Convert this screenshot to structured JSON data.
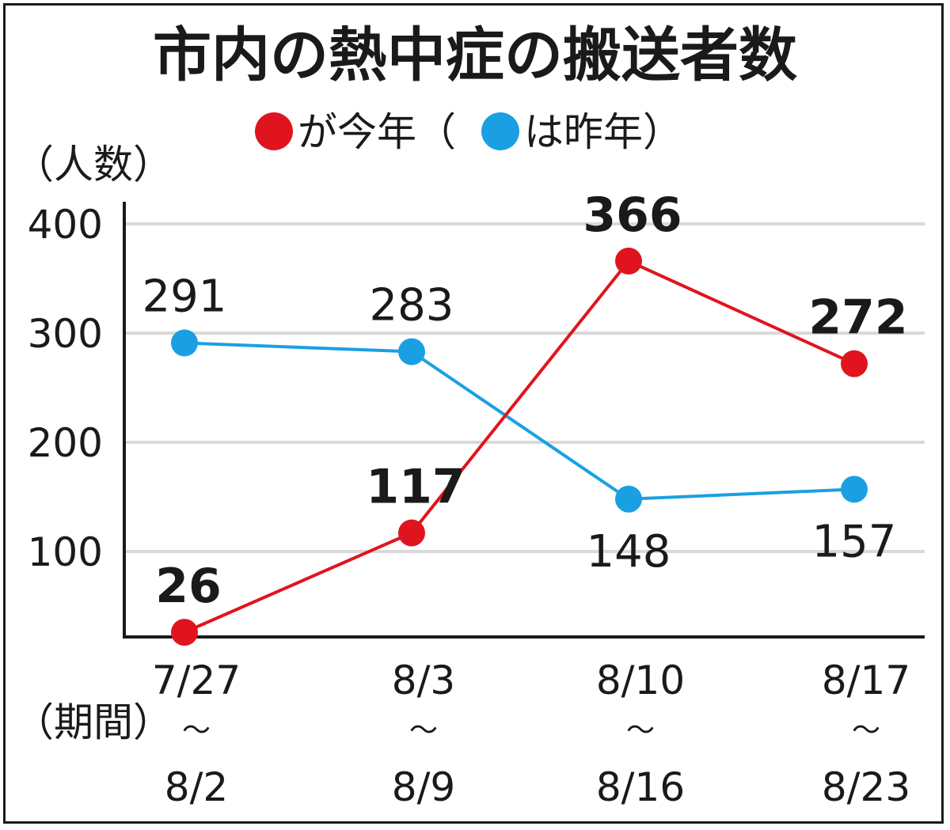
{
  "chart_data": {
    "type": "line",
    "title": "市内の熱中症の搬送者数",
    "legend": {
      "position": "top",
      "current_label": "が今年（",
      "previous_label": "は昨年）"
    },
    "ylabel": "（人数）",
    "xlabel": "（期間）",
    "ylim": [
      0,
      400
    ],
    "yticks": [
      "100",
      "200",
      "300",
      "400"
    ],
    "ytick_values": [
      100,
      200,
      300,
      400
    ],
    "grid": true,
    "categories": [
      [
        "7/27",
        "〜",
        "8/2"
      ],
      [
        "8/3",
        "〜",
        "8/9"
      ],
      [
        "8/10",
        "〜",
        "8/16"
      ],
      [
        "8/17",
        "〜",
        "8/23"
      ]
    ],
    "series": [
      {
        "key": "current",
        "color": "#e0141e",
        "values": [
          26,
          117,
          366,
          272
        ],
        "labels": [
          "26",
          "117",
          "366",
          "272"
        ]
      },
      {
        "key": "previous",
        "color": "#1aa0e2",
        "values": [
          291,
          283,
          148,
          157
        ],
        "labels": [
          "291",
          "283",
          "148",
          "157"
        ]
      }
    ]
  }
}
